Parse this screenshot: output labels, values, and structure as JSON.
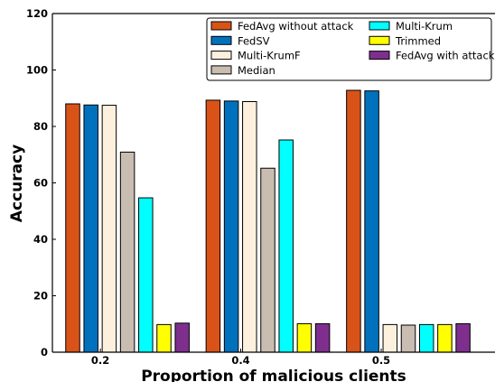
{
  "chart_data": {
    "type": "bar",
    "xlabel": "Proportion of malicious clients",
    "ylabel": "Accuracy",
    "categories": [
      "0.2",
      "0.4",
      "0.5"
    ],
    "ylim": [
      0,
      120
    ],
    "yticks": [
      0,
      20,
      40,
      60,
      80,
      100,
      120
    ],
    "grid": false,
    "legend_position": "top-right",
    "series": [
      {
        "name": "FedAvg without attack",
        "color": "#D95319",
        "values": [
          88.0,
          89.3,
          92.8
        ]
      },
      {
        "name": "FedSV",
        "color": "#0072BD",
        "values": [
          87.6,
          89.0,
          92.6
        ]
      },
      {
        "name": "Multi-KrumF",
        "color": "#FDF1DE",
        "values": [
          87.5,
          88.8,
          9.8
        ]
      },
      {
        "name": "Median",
        "color": "#C9BCB1",
        "values": [
          70.9,
          65.2,
          9.6
        ]
      },
      {
        "name": "Multi-Krum",
        "color": "#00FFFF",
        "values": [
          54.7,
          75.2,
          9.8
        ]
      },
      {
        "name": "Trimmed",
        "color": "#FFFF00",
        "values": [
          9.8,
          10.1,
          9.8
        ]
      },
      {
        "name": "FedAvg with attack",
        "color": "#7E2F8E",
        "values": [
          10.3,
          10.1,
          10.1
        ]
      }
    ]
  }
}
